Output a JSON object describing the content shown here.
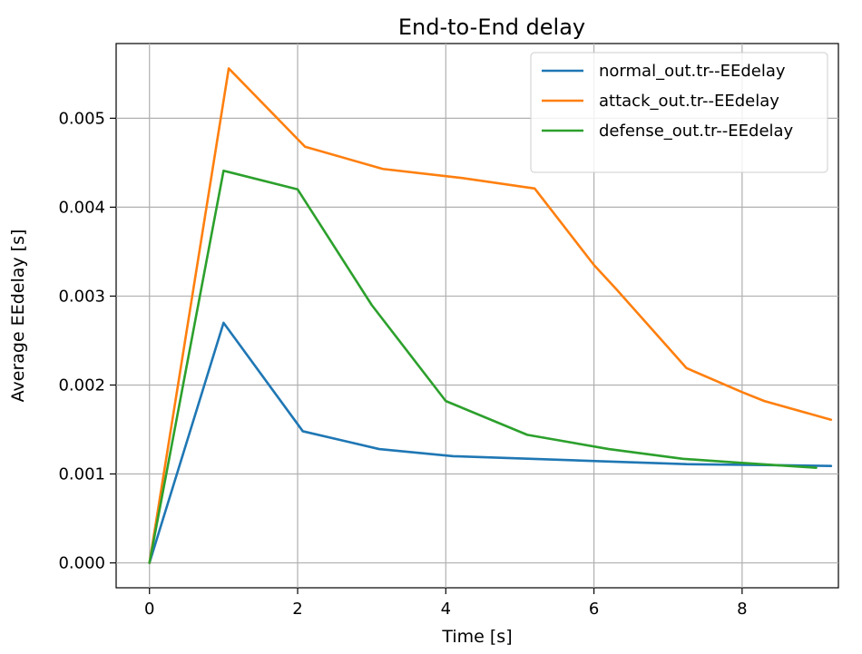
{
  "chart_data": {
    "type": "line",
    "title": "End-to-End delay",
    "xlabel": "Time [s]",
    "ylabel": "Average EEdelay [s]",
    "xlim": [
      -0.45,
      9.3
    ],
    "ylim": [
      -0.00028,
      0.00584
    ],
    "xticks": [
      0,
      2,
      4,
      6,
      8
    ],
    "yticks": [
      0.0,
      0.001,
      0.002,
      0.003,
      0.004,
      0.005
    ],
    "ytick_labels": [
      "0.000",
      "0.001",
      "0.002",
      "0.003",
      "0.004",
      "0.005"
    ],
    "grid": true,
    "legend_position": "top-right",
    "series": [
      {
        "name": "normal_out.tr--EEdelay",
        "color": "#1f77b4",
        "x": [
          0.0,
          1.0,
          2.07,
          3.1,
          4.1,
          5.15,
          6.2,
          7.25,
          8.3,
          9.2
        ],
        "y": [
          0.0,
          0.0027,
          0.00148,
          0.00128,
          0.0012,
          0.00117,
          0.00114,
          0.00111,
          0.0011,
          0.00109
        ]
      },
      {
        "name": "attack_out.tr--EEdelay",
        "color": "#ff7f0e",
        "x": [
          0.0,
          1.07,
          2.1,
          3.15,
          4.2,
          5.2,
          6.0,
          6.3,
          7.25,
          8.0,
          8.3,
          9.2
        ],
        "y": [
          0.0,
          0.00556,
          0.00468,
          0.00443,
          0.00433,
          0.00421,
          0.00335,
          0.00308,
          0.00219,
          0.00192,
          0.00182,
          0.00161
        ]
      },
      {
        "name": "defense_out.tr--EEdelay",
        "color": "#2ca02c",
        "x": [
          0.0,
          1.0,
          2.0,
          3.0,
          4.0,
          5.1,
          6.2,
          7.2,
          8.25,
          9.0
        ],
        "y": [
          0.0,
          0.00441,
          0.0042,
          0.0029,
          0.00182,
          0.00144,
          0.00128,
          0.00117,
          0.00111,
          0.00107
        ]
      }
    ]
  }
}
